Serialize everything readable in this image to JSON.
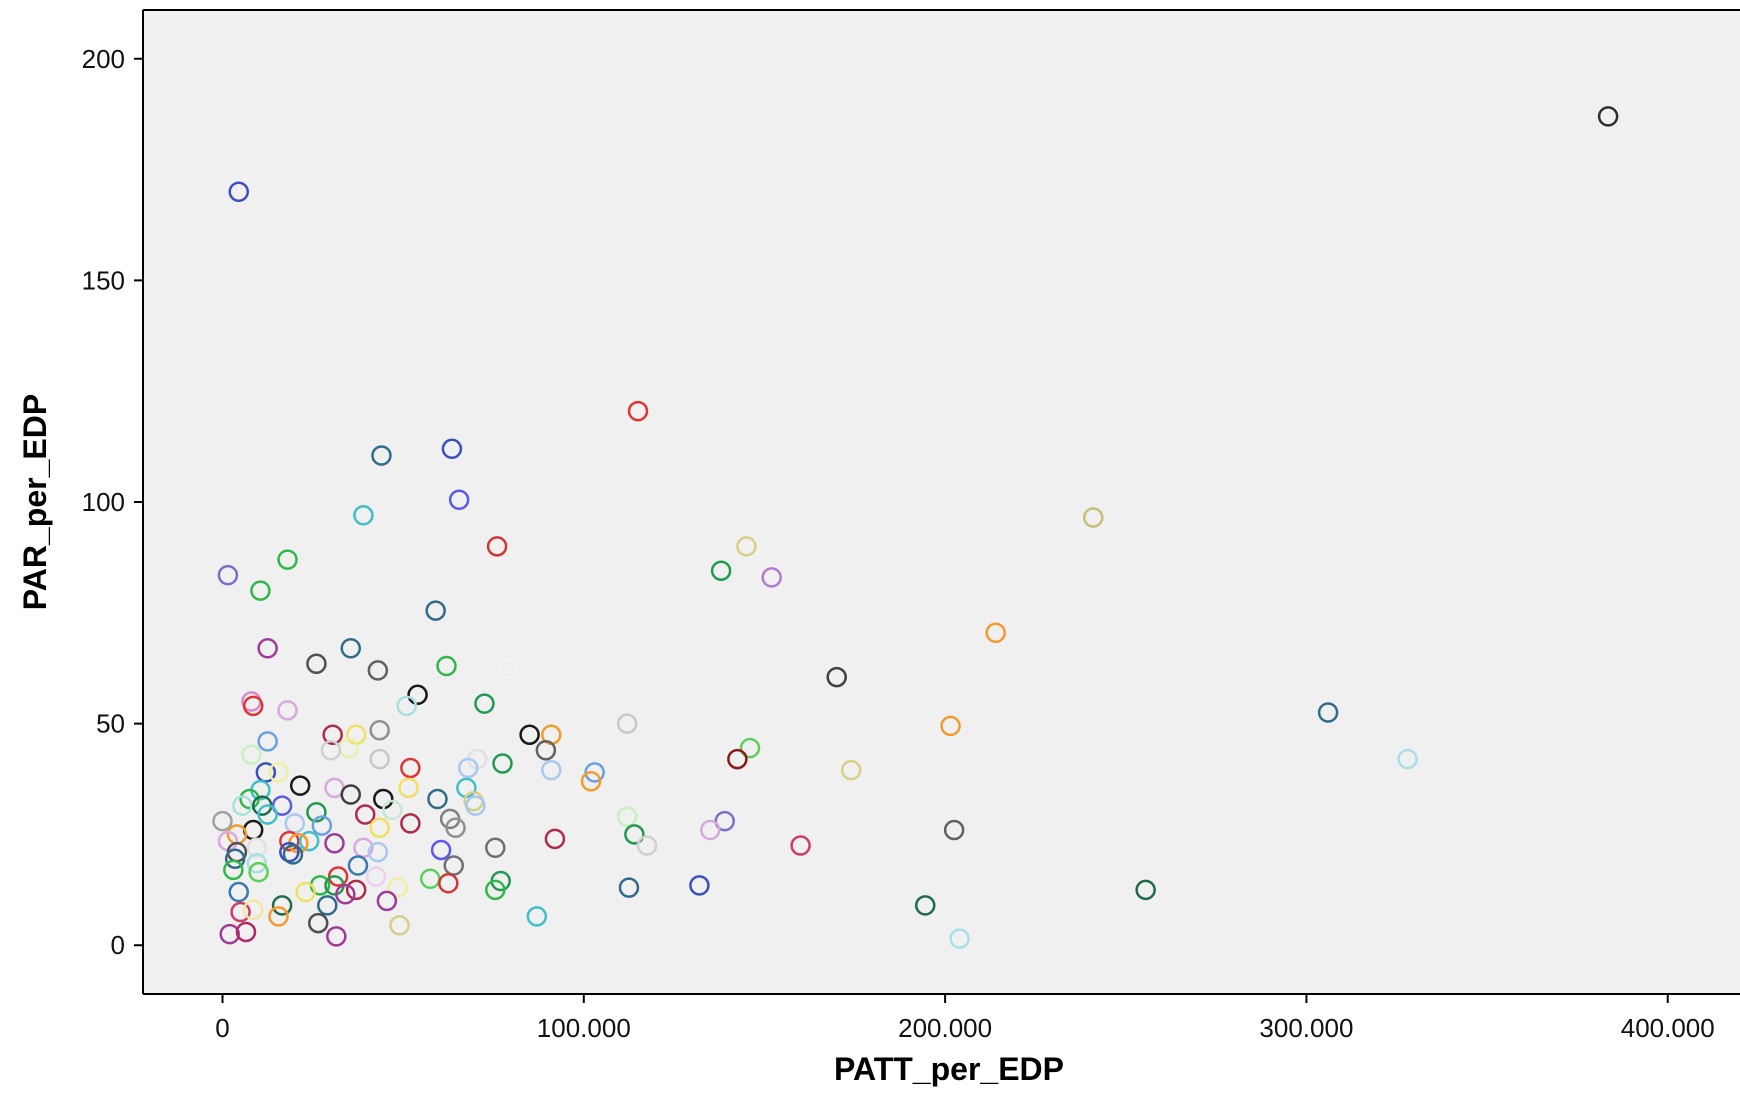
{
  "chart_data": {
    "type": "scatter",
    "title": "",
    "xlabel": "PATT_per_EDP",
    "ylabel": "PAR_per_EDP",
    "xlim": [
      -22000,
      420000
    ],
    "ylim": [
      -11,
      211
    ],
    "x_ticks": [
      {
        "value": 0,
        "label": "0"
      },
      {
        "value": 100000,
        "label": "100.000"
      },
      {
        "value": 200000,
        "label": "200.000"
      },
      {
        "value": 300000,
        "label": "300.000"
      },
      {
        "value": 400000,
        "label": "400.000"
      }
    ],
    "y_ticks": [
      {
        "value": 0,
        "label": "0"
      },
      {
        "value": 50,
        "label": "50"
      },
      {
        "value": 100,
        "label": "100"
      },
      {
        "value": 150,
        "label": "150"
      },
      {
        "value": 200,
        "label": "200"
      }
    ],
    "grid": false,
    "legend": "none",
    "marker": "open-circle",
    "colors": {
      "plot_background": "#f0f0f0",
      "page_background": "#ffffff",
      "axis": "#000000"
    },
    "points": [
      {
        "x": 383500,
        "y": 187,
        "color": "#303030"
      },
      {
        "x": 4500,
        "y": 170,
        "color": "#3a4fc0"
      },
      {
        "x": 115000,
        "y": 120.5,
        "color": "#e03434"
      },
      {
        "x": 63500,
        "y": 112,
        "color": "#3a4fc0"
      },
      {
        "x": 44000,
        "y": 110.5,
        "color": "#2f6b8a"
      },
      {
        "x": 65500,
        "y": 100.5,
        "color": "#5a5ae6"
      },
      {
        "x": 39000,
        "y": 97,
        "color": "#3fc0c8"
      },
      {
        "x": 241000,
        "y": 96.5,
        "color": "#c8bf7a"
      },
      {
        "x": 76000,
        "y": 90,
        "color": "#d03434"
      },
      {
        "x": 145000,
        "y": 90,
        "color": "#d8cf86"
      },
      {
        "x": 18000,
        "y": 87,
        "color": "#2fb84a"
      },
      {
        "x": 138000,
        "y": 84.5,
        "color": "#1f9a4f"
      },
      {
        "x": 1500,
        "y": 83.5,
        "color": "#7a6fc8"
      },
      {
        "x": 152000,
        "y": 83,
        "color": "#b27ad0"
      },
      {
        "x": 10500,
        "y": 80,
        "color": "#2fb84a"
      },
      {
        "x": 59000,
        "y": 75.5,
        "color": "#2f6b8a"
      },
      {
        "x": 214000,
        "y": 70.5,
        "color": "#f29a2e"
      },
      {
        "x": 12500,
        "y": 67,
        "color": "#a03a9a"
      },
      {
        "x": 35500,
        "y": 67,
        "color": "#2f6b8a"
      },
      {
        "x": 26000,
        "y": 63.5,
        "color": "#505050"
      },
      {
        "x": 62000,
        "y": 63,
        "color": "#2fb84a"
      },
      {
        "x": 43000,
        "y": 62,
        "color": "#606060"
      },
      {
        "x": 79000,
        "y": 62.5,
        "color": "#f4f4f4"
      },
      {
        "x": 170000,
        "y": 60.5,
        "color": "#404040"
      },
      {
        "x": 54000,
        "y": 56.5,
        "color": "#1a1a1a"
      },
      {
        "x": 72500,
        "y": 54.5,
        "color": "#1f9a4f"
      },
      {
        "x": 8000,
        "y": 55,
        "color": "#d88ad0"
      },
      {
        "x": 8500,
        "y": 54,
        "color": "#e03434"
      },
      {
        "x": 18000,
        "y": 53,
        "color": "#d8a8e0"
      },
      {
        "x": 51000,
        "y": 54,
        "color": "#a8e0e0"
      },
      {
        "x": 306000,
        "y": 52.5,
        "color": "#2f6b8a"
      },
      {
        "x": 112000,
        "y": 50,
        "color": "#c8c8c8"
      },
      {
        "x": 201500,
        "y": 49.5,
        "color": "#f29a2e"
      },
      {
        "x": 43500,
        "y": 48.5,
        "color": "#909090"
      },
      {
        "x": 30500,
        "y": 47.5,
        "color": "#b02a4a"
      },
      {
        "x": 37000,
        "y": 47.5,
        "color": "#f0e060"
      },
      {
        "x": 85000,
        "y": 47.5,
        "color": "#1a1a1a"
      },
      {
        "x": 91000,
        "y": 47.5,
        "color": "#f29a2e"
      },
      {
        "x": 12500,
        "y": 46,
        "color": "#6aa0e0"
      },
      {
        "x": 35000,
        "y": 44.5,
        "color": "#e8f0b0"
      },
      {
        "x": 30000,
        "y": 44,
        "color": "#d0d0d0"
      },
      {
        "x": 89500,
        "y": 44,
        "color": "#606060"
      },
      {
        "x": 146000,
        "y": 44.5,
        "color": "#5ad05a"
      },
      {
        "x": 8000,
        "y": 43,
        "color": "#c8f0c0"
      },
      {
        "x": 43500,
        "y": 42,
        "color": "#c8c8c8"
      },
      {
        "x": 70500,
        "y": 42,
        "color": "#e0e0e0"
      },
      {
        "x": 142500,
        "y": 42,
        "color": "#8a1a1a"
      },
      {
        "x": 328000,
        "y": 42,
        "color": "#a8e0e8"
      },
      {
        "x": 52000,
        "y": 40,
        "color": "#e03434"
      },
      {
        "x": 68000,
        "y": 40,
        "color": "#a8c8f0"
      },
      {
        "x": 77500,
        "y": 41,
        "color": "#1f9a4f"
      },
      {
        "x": 91000,
        "y": 39.5,
        "color": "#a8c8f0"
      },
      {
        "x": 103000,
        "y": 39,
        "color": "#6aa0e0"
      },
      {
        "x": 174000,
        "y": 39.5,
        "color": "#d8cf86"
      },
      {
        "x": 12000,
        "y": 39,
        "color": "#3a4fc0"
      },
      {
        "x": 15500,
        "y": 39,
        "color": "#f0f0a0"
      },
      {
        "x": 102000,
        "y": 37,
        "color": "#f29a2e"
      },
      {
        "x": 21500,
        "y": 36,
        "color": "#1a1a1a"
      },
      {
        "x": 10500,
        "y": 35,
        "color": "#3fc0c8"
      },
      {
        "x": 31000,
        "y": 35.5,
        "color": "#d8a8e0"
      },
      {
        "x": 51500,
        "y": 35.5,
        "color": "#f0e060"
      },
      {
        "x": 67500,
        "y": 35.5,
        "color": "#3fc0c8"
      },
      {
        "x": 35500,
        "y": 34,
        "color": "#404040"
      },
      {
        "x": 44500,
        "y": 33,
        "color": "#1a1a1a"
      },
      {
        "x": 59500,
        "y": 33,
        "color": "#2f6b8a"
      },
      {
        "x": 69500,
        "y": 32.5,
        "color": "#d8cf86"
      },
      {
        "x": 70000,
        "y": 31.5,
        "color": "#a8c8f0"
      },
      {
        "x": 7500,
        "y": 33,
        "color": "#2fb84a"
      },
      {
        "x": 5500,
        "y": 31.5,
        "color": "#a8e0e0"
      },
      {
        "x": 11000,
        "y": 31.5,
        "color": "#1f6b4a"
      },
      {
        "x": 16500,
        "y": 31.5,
        "color": "#5a5ae6"
      },
      {
        "x": 12500,
        "y": 29.5,
        "color": "#3fc0c8"
      },
      {
        "x": 26000,
        "y": 30,
        "color": "#1f9a4f"
      },
      {
        "x": 39500,
        "y": 29.5,
        "color": "#b02a4a"
      },
      {
        "x": 47000,
        "y": 30.5,
        "color": "#c8e8d0"
      },
      {
        "x": 112000,
        "y": 29,
        "color": "#c8f0c0"
      },
      {
        "x": 63000,
        "y": 28.5,
        "color": "#808080"
      },
      {
        "x": 0,
        "y": 28,
        "color": "#a0a0a0"
      },
      {
        "x": 20000,
        "y": 27.5,
        "color": "#a8c8f0"
      },
      {
        "x": 27500,
        "y": 27,
        "color": "#6aa0e0"
      },
      {
        "x": 52000,
        "y": 27.5,
        "color": "#b02a4a"
      },
      {
        "x": 64500,
        "y": 26.5,
        "color": "#909090"
      },
      {
        "x": 139000,
        "y": 28,
        "color": "#7a6fc8"
      },
      {
        "x": 135000,
        "y": 26,
        "color": "#d8a8e0"
      },
      {
        "x": 8500,
        "y": 26,
        "color": "#1a1a1a"
      },
      {
        "x": 4000,
        "y": 25,
        "color": "#f29a2e"
      },
      {
        "x": 43500,
        "y": 26.5,
        "color": "#f0e060"
      },
      {
        "x": 202500,
        "y": 26,
        "color": "#606060"
      },
      {
        "x": 114000,
        "y": 25,
        "color": "#1f9a4f"
      },
      {
        "x": 92000,
        "y": 24,
        "color": "#b02a4a"
      },
      {
        "x": 1500,
        "y": 23.5,
        "color": "#d8a8e0"
      },
      {
        "x": 18500,
        "y": 23.5,
        "color": "#e03434"
      },
      {
        "x": 24000,
        "y": 23.5,
        "color": "#3fc0c8"
      },
      {
        "x": 31000,
        "y": 23,
        "color": "#a03a9a"
      },
      {
        "x": 21000,
        "y": 23,
        "color": "#f29a2e"
      },
      {
        "x": 117500,
        "y": 22.5,
        "color": "#d0d0d0"
      },
      {
        "x": 160000,
        "y": 22.5,
        "color": "#d03a6a"
      },
      {
        "x": 39000,
        "y": 22,
        "color": "#d8a8e0"
      },
      {
        "x": 75500,
        "y": 22,
        "color": "#707070"
      },
      {
        "x": 43000,
        "y": 21,
        "color": "#a8c8f0"
      },
      {
        "x": 60500,
        "y": 21.5,
        "color": "#5a5ae6"
      },
      {
        "x": 9500,
        "y": 22,
        "color": "#e0e0e0"
      },
      {
        "x": 18500,
        "y": 21,
        "color": "#3a4fc0"
      },
      {
        "x": 19500,
        "y": 20.5,
        "color": "#2f6b8a"
      },
      {
        "x": 4000,
        "y": 21,
        "color": "#505050"
      },
      {
        "x": 3500,
        "y": 19.5,
        "color": "#2f6b8a"
      },
      {
        "x": 9500,
        "y": 18.5,
        "color": "#a8e0e0"
      },
      {
        "x": 37500,
        "y": 18,
        "color": "#3a7ab0"
      },
      {
        "x": 64000,
        "y": 18,
        "color": "#707070"
      },
      {
        "x": 3000,
        "y": 17,
        "color": "#2fb84a"
      },
      {
        "x": 10000,
        "y": 16.5,
        "color": "#5ad05a"
      },
      {
        "x": 42500,
        "y": 15.5,
        "color": "#f0d0f0"
      },
      {
        "x": 32000,
        "y": 15.5,
        "color": "#e03434"
      },
      {
        "x": 57500,
        "y": 15,
        "color": "#5ad05a"
      },
      {
        "x": 77000,
        "y": 14.5,
        "color": "#1f9a4f"
      },
      {
        "x": 27000,
        "y": 13.5,
        "color": "#2fb84a"
      },
      {
        "x": 31000,
        "y": 13.5,
        "color": "#1f9a4f"
      },
      {
        "x": 37000,
        "y": 12.5,
        "color": "#b02a4a"
      },
      {
        "x": 62500,
        "y": 14,
        "color": "#d03434"
      },
      {
        "x": 48500,
        "y": 13,
        "color": "#f0f0a0"
      },
      {
        "x": 23000,
        "y": 12,
        "color": "#f0e060"
      },
      {
        "x": 75500,
        "y": 12.5,
        "color": "#2fb84a"
      },
      {
        "x": 34000,
        "y": 11.5,
        "color": "#a03a9a"
      },
      {
        "x": 112500,
        "y": 13,
        "color": "#2f6b8a"
      },
      {
        "x": 132000,
        "y": 13.5,
        "color": "#3a4fc0"
      },
      {
        "x": 255500,
        "y": 12.5,
        "color": "#1f6b4a"
      },
      {
        "x": 4500,
        "y": 12,
        "color": "#3a7ab0"
      },
      {
        "x": 45500,
        "y": 10,
        "color": "#a03a9a"
      },
      {
        "x": 16500,
        "y": 9,
        "color": "#1f6b4a"
      },
      {
        "x": 29000,
        "y": 9,
        "color": "#2f6b8a"
      },
      {
        "x": 194500,
        "y": 9,
        "color": "#1f6b4a"
      },
      {
        "x": 5000,
        "y": 7.5,
        "color": "#d03a6a"
      },
      {
        "x": 8500,
        "y": 8,
        "color": "#f0e8a0"
      },
      {
        "x": 15500,
        "y": 6.5,
        "color": "#f29a2e"
      },
      {
        "x": 87000,
        "y": 6.5,
        "color": "#3fc0c8"
      },
      {
        "x": 26500,
        "y": 5,
        "color": "#505050"
      },
      {
        "x": 49000,
        "y": 4.5,
        "color": "#d8cf86"
      },
      {
        "x": 2000,
        "y": 2.5,
        "color": "#a03a9a"
      },
      {
        "x": 6500,
        "y": 3,
        "color": "#b02a6a"
      },
      {
        "x": 31500,
        "y": 2,
        "color": "#a03a9a"
      },
      {
        "x": 204000,
        "y": 1.5,
        "color": "#a8e0e8"
      }
    ]
  }
}
